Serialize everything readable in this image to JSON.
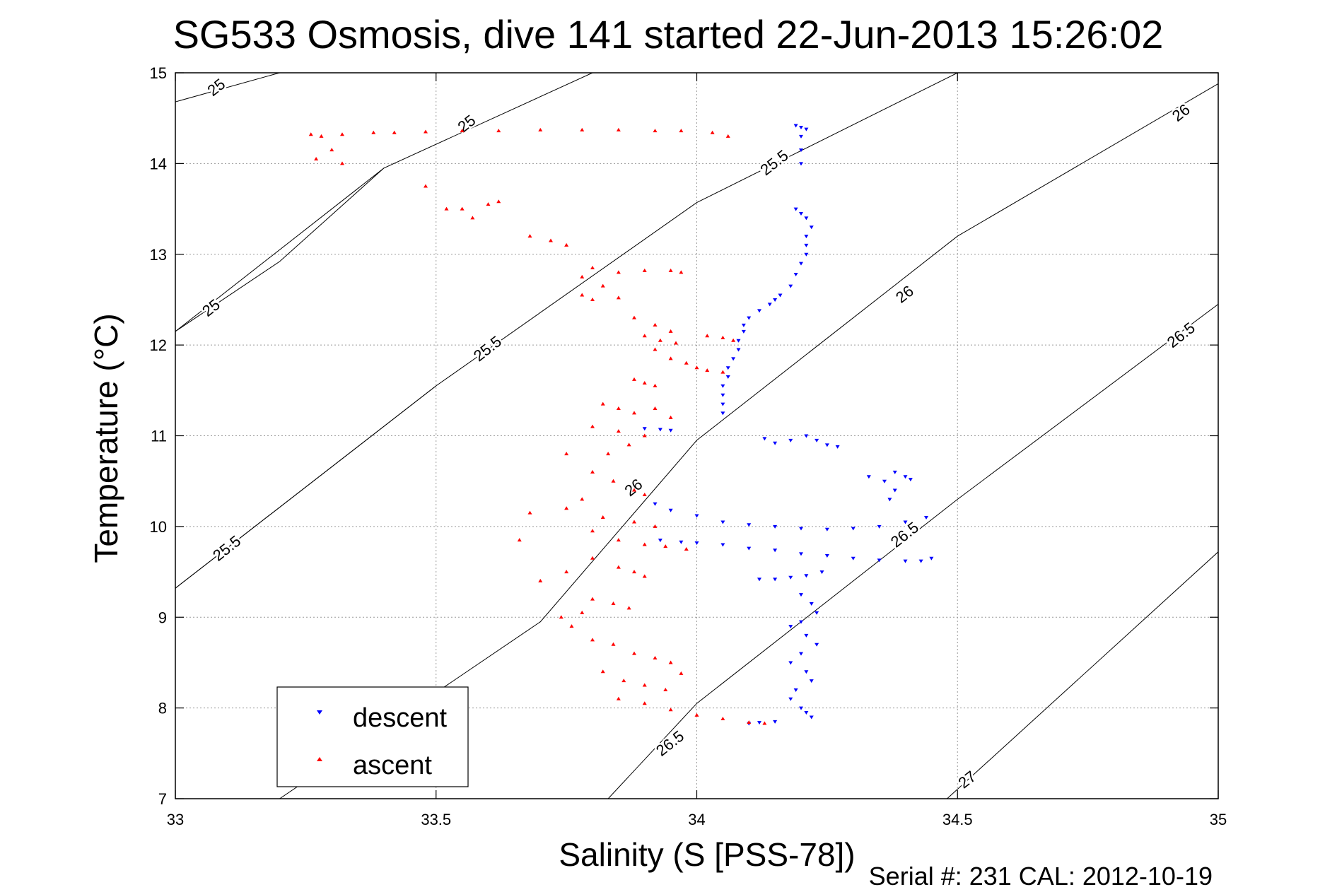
{
  "chart_data": {
    "type": "scatter",
    "title": "SG533 Osmosis, dive 141 started 22-Jun-2013 15:26:02",
    "xlabel": "Salinity (S [PSS-78])",
    "ylabel": "Temperature (°C)",
    "footer": "Serial #: 231  CAL: 2012-10-19",
    "xlim": [
      33,
      35
    ],
    "ylim": [
      7,
      15
    ],
    "x_ticks": [
      "33",
      "33.5",
      "34",
      "34.5",
      "35"
    ],
    "y_ticks": [
      "7",
      "8",
      "9",
      "10",
      "11",
      "12",
      "13",
      "14",
      "15"
    ],
    "grid": true,
    "legend_position": "bottom-left",
    "series": [
      {
        "name": "descent",
        "color": "#0000ff",
        "marker": "triangle-down",
        "points": [
          [
            34.19,
            14.42
          ],
          [
            34.2,
            14.4
          ],
          [
            34.21,
            14.38
          ],
          [
            34.2,
            14.3
          ],
          [
            34.2,
            14.15
          ],
          [
            34.2,
            14.0
          ],
          [
            34.19,
            13.5
          ],
          [
            34.2,
            13.45
          ],
          [
            34.21,
            13.4
          ],
          [
            34.22,
            13.3
          ],
          [
            34.21,
            13.2
          ],
          [
            34.21,
            13.1
          ],
          [
            34.21,
            13.0
          ],
          [
            34.2,
            12.9
          ],
          [
            34.19,
            12.78
          ],
          [
            34.18,
            12.65
          ],
          [
            34.16,
            12.55
          ],
          [
            34.15,
            12.5
          ],
          [
            34.14,
            12.45
          ],
          [
            34.12,
            12.38
          ],
          [
            34.1,
            12.3
          ],
          [
            34.09,
            12.22
          ],
          [
            34.09,
            12.15
          ],
          [
            34.08,
            12.05
          ],
          [
            34.08,
            11.95
          ],
          [
            34.07,
            11.85
          ],
          [
            34.06,
            11.75
          ],
          [
            34.06,
            11.65
          ],
          [
            34.05,
            11.55
          ],
          [
            34.05,
            11.45
          ],
          [
            34.05,
            11.35
          ],
          [
            34.05,
            11.25
          ],
          [
            33.9,
            11.08
          ],
          [
            33.93,
            11.07
          ],
          [
            33.95,
            11.06
          ],
          [
            34.13,
            10.97
          ],
          [
            34.15,
            10.92
          ],
          [
            34.18,
            10.95
          ],
          [
            34.21,
            11.0
          ],
          [
            34.23,
            10.95
          ],
          [
            34.25,
            10.9
          ],
          [
            34.27,
            10.88
          ],
          [
            34.33,
            10.55
          ],
          [
            34.36,
            10.5
          ],
          [
            34.38,
            10.6
          ],
          [
            34.4,
            10.55
          ],
          [
            34.41,
            10.52
          ],
          [
            34.38,
            10.4
          ],
          [
            34.37,
            10.3
          ],
          [
            33.92,
            10.25
          ],
          [
            33.95,
            10.18
          ],
          [
            34.0,
            10.12
          ],
          [
            34.05,
            10.05
          ],
          [
            34.1,
            10.02
          ],
          [
            34.15,
            10.0
          ],
          [
            34.2,
            9.98
          ],
          [
            34.25,
            9.97
          ],
          [
            34.3,
            9.98
          ],
          [
            34.35,
            10.0
          ],
          [
            34.4,
            10.05
          ],
          [
            34.44,
            10.1
          ],
          [
            33.93,
            9.85
          ],
          [
            33.97,
            9.83
          ],
          [
            34.0,
            9.82
          ],
          [
            34.05,
            9.8
          ],
          [
            34.1,
            9.76
          ],
          [
            34.15,
            9.74
          ],
          [
            34.2,
            9.7
          ],
          [
            34.25,
            9.68
          ],
          [
            34.3,
            9.65
          ],
          [
            34.35,
            9.63
          ],
          [
            34.4,
            9.62
          ],
          [
            34.43,
            9.62
          ],
          [
            34.45,
            9.65
          ],
          [
            34.12,
            9.42
          ],
          [
            34.15,
            9.42
          ],
          [
            34.18,
            9.44
          ],
          [
            34.21,
            9.46
          ],
          [
            34.24,
            9.5
          ],
          [
            34.2,
            9.25
          ],
          [
            34.22,
            9.15
          ],
          [
            34.23,
            9.05
          ],
          [
            34.2,
            8.95
          ],
          [
            34.18,
            8.9
          ],
          [
            34.21,
            8.8
          ],
          [
            34.23,
            8.7
          ],
          [
            34.2,
            8.6
          ],
          [
            34.18,
            8.5
          ],
          [
            34.21,
            8.4
          ],
          [
            34.22,
            8.3
          ],
          [
            34.19,
            8.2
          ],
          [
            34.18,
            8.1
          ],
          [
            34.2,
            8.0
          ],
          [
            34.21,
            7.95
          ],
          [
            34.22,
            7.9
          ],
          [
            34.15,
            7.85
          ],
          [
            34.12,
            7.84
          ],
          [
            34.1,
            7.83
          ]
        ]
      },
      {
        "name": "ascent",
        "color": "#ff0000",
        "marker": "triangle-up",
        "points": [
          [
            33.26,
            14.32
          ],
          [
            33.28,
            14.3
          ],
          [
            33.32,
            14.32
          ],
          [
            33.38,
            14.34
          ],
          [
            33.42,
            14.34
          ],
          [
            33.48,
            14.35
          ],
          [
            33.55,
            14.36
          ],
          [
            33.62,
            14.36
          ],
          [
            33.7,
            14.37
          ],
          [
            33.78,
            14.37
          ],
          [
            33.85,
            14.37
          ],
          [
            33.92,
            14.36
          ],
          [
            33.97,
            14.36
          ],
          [
            34.03,
            14.34
          ],
          [
            34.06,
            14.3
          ],
          [
            33.27,
            14.05
          ],
          [
            33.32,
            14.0
          ],
          [
            33.3,
            14.15
          ],
          [
            33.48,
            13.75
          ],
          [
            33.52,
            13.5
          ],
          [
            33.55,
            13.5
          ],
          [
            33.6,
            13.55
          ],
          [
            33.62,
            13.58
          ],
          [
            33.57,
            13.4
          ],
          [
            33.68,
            13.2
          ],
          [
            33.72,
            13.15
          ],
          [
            33.75,
            13.1
          ],
          [
            33.8,
            12.85
          ],
          [
            33.85,
            12.8
          ],
          [
            33.9,
            12.82
          ],
          [
            33.95,
            12.82
          ],
          [
            33.97,
            12.8
          ],
          [
            33.78,
            12.75
          ],
          [
            33.82,
            12.65
          ],
          [
            33.78,
            12.55
          ],
          [
            33.8,
            12.5
          ],
          [
            33.85,
            12.52
          ],
          [
            33.88,
            12.3
          ],
          [
            33.92,
            12.22
          ],
          [
            33.95,
            12.15
          ],
          [
            33.9,
            12.1
          ],
          [
            33.93,
            12.05
          ],
          [
            33.96,
            12.02
          ],
          [
            33.92,
            11.95
          ],
          [
            33.95,
            11.85
          ],
          [
            33.98,
            11.8
          ],
          [
            34.0,
            11.75
          ],
          [
            34.02,
            11.72
          ],
          [
            34.05,
            11.7
          ],
          [
            34.02,
            12.1
          ],
          [
            34.05,
            12.08
          ],
          [
            34.07,
            12.05
          ],
          [
            33.88,
            11.62
          ],
          [
            33.9,
            11.58
          ],
          [
            33.92,
            11.55
          ],
          [
            33.82,
            11.35
          ],
          [
            33.85,
            11.3
          ],
          [
            33.88,
            11.25
          ],
          [
            33.92,
            11.3
          ],
          [
            33.95,
            11.2
          ],
          [
            33.8,
            11.1
          ],
          [
            33.85,
            11.05
          ],
          [
            33.9,
            11.0
          ],
          [
            33.87,
            10.9
          ],
          [
            33.83,
            10.8
          ],
          [
            33.75,
            10.8
          ],
          [
            33.8,
            10.6
          ],
          [
            33.84,
            10.5
          ],
          [
            33.88,
            10.4
          ],
          [
            33.9,
            10.35
          ],
          [
            33.78,
            10.3
          ],
          [
            33.75,
            10.2
          ],
          [
            33.82,
            10.1
          ],
          [
            33.88,
            10.05
          ],
          [
            33.92,
            10.0
          ],
          [
            33.68,
            10.15
          ],
          [
            33.8,
            9.95
          ],
          [
            33.85,
            9.85
          ],
          [
            33.9,
            9.8
          ],
          [
            33.94,
            9.78
          ],
          [
            33.98,
            9.75
          ],
          [
            33.66,
            9.85
          ],
          [
            33.8,
            9.65
          ],
          [
            33.85,
            9.55
          ],
          [
            33.88,
            9.5
          ],
          [
            33.9,
            9.45
          ],
          [
            33.7,
            9.4
          ],
          [
            33.75,
            9.5
          ],
          [
            33.8,
            9.2
          ],
          [
            33.84,
            9.15
          ],
          [
            33.87,
            9.1
          ],
          [
            33.78,
            9.05
          ],
          [
            33.74,
            9.0
          ],
          [
            33.76,
            8.9
          ],
          [
            33.8,
            8.75
          ],
          [
            33.84,
            8.7
          ],
          [
            33.88,
            8.6
          ],
          [
            33.92,
            8.55
          ],
          [
            33.95,
            8.5
          ],
          [
            33.82,
            8.4
          ],
          [
            33.86,
            8.3
          ],
          [
            33.9,
            8.25
          ],
          [
            33.94,
            8.2
          ],
          [
            33.97,
            8.38
          ],
          [
            33.85,
            8.1
          ],
          [
            33.9,
            8.05
          ],
          [
            33.95,
            7.98
          ],
          [
            34.0,
            7.92
          ],
          [
            34.05,
            7.88
          ],
          [
            34.1,
            7.84
          ],
          [
            34.13,
            7.83
          ]
        ]
      }
    ],
    "isopycnals": [
      {
        "label": "25",
        "points": [
          [
            33.0,
            14.68
          ],
          [
            33.2,
            15.0
          ]
        ],
        "label_at": [
          33.08,
          14.83
        ]
      },
      {
        "label": "25",
        "points": [
          [
            33.0,
            12.15
          ],
          [
            33.4,
            13.95
          ],
          [
            33.8,
            15.0
          ]
        ],
        "label_at": [
          33.56,
          14.43
        ]
      },
      {
        "label": "25",
        "points": [
          [
            33.0,
            12.15
          ],
          [
            33.2,
            12.92
          ],
          [
            33.4,
            13.95
          ]
        ],
        "label_at": [
          33.07,
          12.4
        ]
      },
      {
        "label": "25.5",
        "points": [
          [
            33.0,
            9.32
          ],
          [
            33.5,
            11.55
          ],
          [
            34.0,
            13.57
          ],
          [
            34.5,
            15.0
          ]
        ],
        "label_at": [
          33.6,
          11.95
        ]
      },
      {
        "label": "25.5",
        "points": [
          [
            33.0,
            9.32
          ],
          [
            33.5,
            11.55
          ],
          [
            34.0,
            13.57
          ],
          [
            34.5,
            15.0
          ]
        ],
        "label_at": [
          34.15,
          14.0
        ]
      },
      {
        "label": "25.5",
        "points": [
          [
            33.0,
            9.32
          ],
          [
            33.5,
            11.55
          ]
        ],
        "label_at": [
          33.1,
          9.75
        ]
      },
      {
        "label": "26",
        "points": [
          [
            33.2,
            7.0
          ],
          [
            33.7,
            8.95
          ],
          [
            34.0,
            10.95
          ],
          [
            34.5,
            13.2
          ],
          [
            35.0,
            14.88
          ]
        ],
        "label_at": [
          33.88,
          10.42
        ]
      },
      {
        "label": "26",
        "points": [
          [
            33.2,
            7.0
          ],
          [
            33.7,
            8.95
          ],
          [
            34.0,
            10.95
          ],
          [
            34.5,
            13.2
          ],
          [
            35.0,
            14.88
          ]
        ],
        "label_at": [
          34.4,
          12.55
        ]
      },
      {
        "label": "26",
        "points": [
          [
            33.2,
            7.0
          ],
          [
            33.7,
            8.95
          ],
          [
            34.0,
            10.95
          ],
          [
            34.5,
            13.2
          ],
          [
            35.0,
            14.88
          ]
        ],
        "label_at": [
          34.93,
          14.55
        ]
      },
      {
        "label": "26.5",
        "points": [
          [
            33.83,
            7.0
          ],
          [
            34.0,
            8.05
          ],
          [
            34.5,
            10.3
          ],
          [
            35.0,
            12.45
          ]
        ],
        "label_at": [
          34.4,
          9.9
        ]
      },
      {
        "label": "26.5",
        "points": [
          [
            33.83,
            7.0
          ],
          [
            34.0,
            8.05
          ],
          [
            34.5,
            10.3
          ],
          [
            35.0,
            12.45
          ]
        ],
        "label_at": [
          33.95,
          7.6
        ]
      },
      {
        "label": "26.5",
        "points": [
          [
            33.83,
            7.0
          ],
          [
            34.0,
            8.05
          ],
          [
            34.5,
            10.3
          ],
          [
            35.0,
            12.45
          ]
        ],
        "label_at": [
          34.93,
          12.1
        ]
      },
      {
        "label": "27",
        "points": [
          [
            34.48,
            7.0
          ],
          [
            35.0,
            9.72
          ]
        ],
        "label_at": [
          34.52,
          7.2
        ]
      }
    ]
  }
}
